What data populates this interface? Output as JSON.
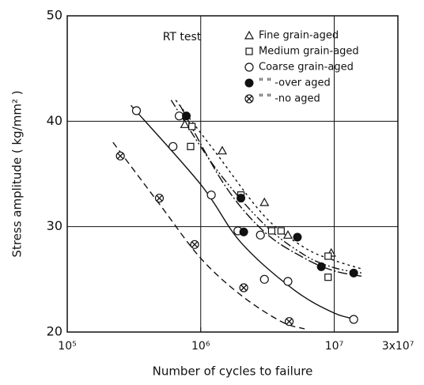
{
  "chart_data": {
    "type": "scatter",
    "xlabel": "Number of cycles to failure",
    "ylabel": "Stress amplitude ( kg/mm² )",
    "annotation": "RT test",
    "xscale": "log",
    "xlim": [
      100000,
      30000000
    ],
    "xticks": [
      {
        "value": 100000,
        "label": "10⁵"
      },
      {
        "value": 1000000,
        "label": "10⁶"
      },
      {
        "value": 10000000,
        "label": "10⁷"
      },
      {
        "value": 30000000,
        "label": "3x10⁷"
      }
    ],
    "ylim": [
      20,
      50
    ],
    "yticks": [
      20,
      30,
      40,
      50
    ],
    "grid": true,
    "legend": "upper right",
    "series": [
      {
        "name": "Fine grain-aged",
        "marker": "triangle",
        "color": "#111",
        "x": [
          760000,
          1450000,
          3000000,
          4500000,
          9500000
        ],
        "values": [
          39.7,
          37.2,
          32.3,
          29.2,
          27.5
        ]
      },
      {
        "name": "Medium grain-aged",
        "marker": "square",
        "color": "#111",
        "x": [
          860000,
          840000,
          2000000,
          3400000,
          4000000,
          9000000,
          9000000
        ],
        "values": [
          39.5,
          37.6,
          33.0,
          29.6,
          29.6,
          27.2,
          25.2
        ]
      },
      {
        "name": "Coarse grain-aged",
        "marker": "circle",
        "color": "#111",
        "x": [
          330000,
          620000,
          690000,
          1200000,
          1900000,
          2800000,
          3000000,
          4500000,
          14000000
        ],
        "values": [
          41.0,
          37.6,
          40.5,
          33.0,
          29.6,
          29.2,
          25.0,
          24.8,
          21.2
        ]
      },
      {
        "name": "\"   \" -over aged",
        "marker": "filled",
        "color": "#111",
        "x": [
          780000,
          2000000,
          2100000,
          5300000,
          8000000,
          14000000
        ],
        "values": [
          40.5,
          32.7,
          29.5,
          29.0,
          26.2,
          25.6
        ]
      },
      {
        "name": "\"   \" -no aged",
        "marker": "hatched",
        "color": "#111",
        "x": [
          250000,
          490000,
          900000,
          2100000,
          4600000
        ],
        "values": [
          36.7,
          32.7,
          28.3,
          24.2,
          21.0
        ]
      }
    ],
    "curves": [
      {
        "dash": "3,4",
        "x": [
          650000,
          1300000,
          3000000,
          6000000,
          10000000,
          16000000
        ],
        "values": [
          42,
          37,
          31,
          28,
          26.8,
          26
        ]
      },
      {
        "dash": "10,3,2,3,2,3",
        "x": [
          600000,
          1300000,
          3000000,
          6000000,
          10000000,
          16000000
        ],
        "values": [
          42,
          35.5,
          30.2,
          27.3,
          26.1,
          25.6
        ]
      },
      {
        "dash": "none",
        "x": [
          300000,
          1000000,
          2000000,
          5000000,
          10000000,
          15000000
        ],
        "values": [
          41.5,
          34,
          28.5,
          24,
          21.8,
          21.2
        ]
      },
      {
        "dash": "12,3,2,3",
        "x": [
          700000,
          1500000,
          3000000,
          6000000,
          10000000,
          16000000
        ],
        "values": [
          41.5,
          34,
          29.5,
          27,
          25.8,
          25.3
        ]
      },
      {
        "dash": "8,5",
        "x": [
          220000,
          500000,
          1000000,
          2000000,
          4000000,
          6000000
        ],
        "values": [
          38,
          32,
          27,
          23.5,
          21,
          20.3
        ]
      }
    ]
  }
}
